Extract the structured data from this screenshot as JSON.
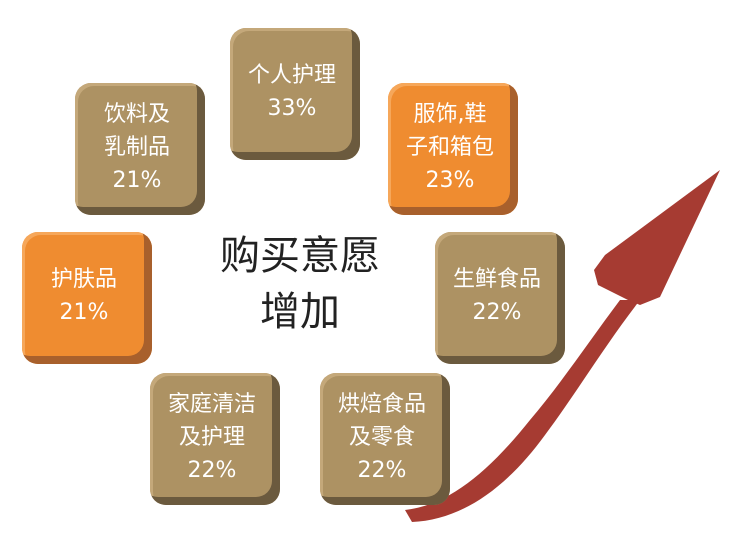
{
  "center_text": {
    "line1": "购买意愿",
    "line2": "增加"
  },
  "boxes": [
    {
      "lines": [
        "个人护理"
      ],
      "percent": "33%",
      "color": "#ad9263"
    },
    {
      "lines": [
        "服饰,鞋",
        "子和箱包"
      ],
      "percent": "23%",
      "color": "#ef8c30"
    },
    {
      "lines": [
        "生鲜食品"
      ],
      "percent": "22%",
      "color": "#ad9263"
    },
    {
      "lines": [
        "烘焙食品",
        "及零食"
      ],
      "percent": "22%",
      "color": "#ad9263"
    },
    {
      "lines": [
        "家庭清洁",
        "及护理"
      ],
      "percent": "22%",
      "color": "#ad9263"
    },
    {
      "lines": [
        "护肤品"
      ],
      "percent": "21%",
      "color": "#ef8c30"
    },
    {
      "lines": [
        "饮料及",
        "乳制品"
      ],
      "percent": "21%",
      "color": "#ad9263"
    }
  ],
  "arrow_color": "#a63b32",
  "arrow_direction": "up-right"
}
